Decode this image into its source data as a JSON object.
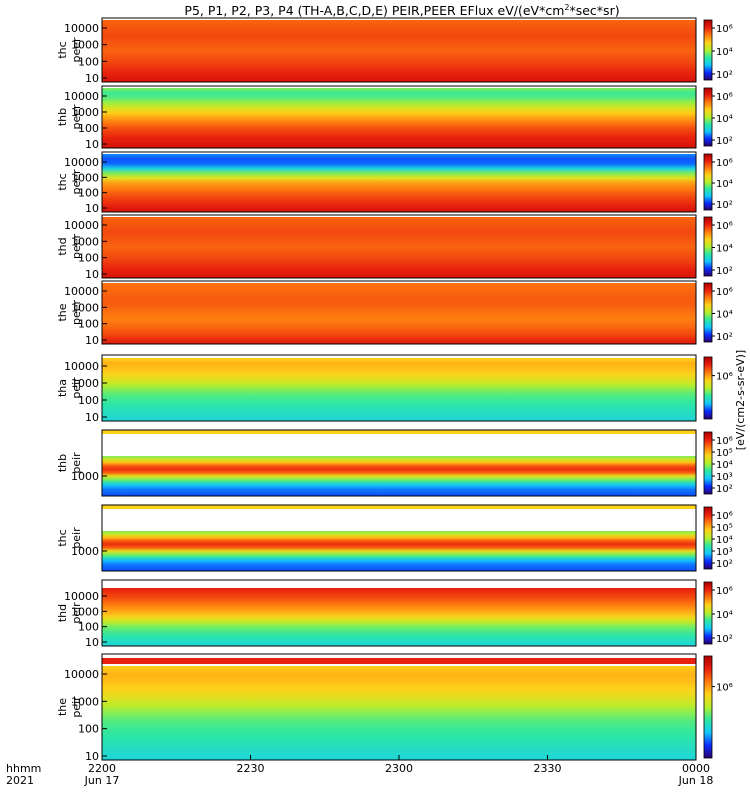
{
  "chart_data": {
    "type": "heatmap",
    "title": "P5, P1, P2, P3, P4 (TH-A,B,C,D,E) PEIR,PEER EFlux eV/(eV*cm²*sec*sr)",
    "title_text": "P5, P1, P2, P3, P4 (TH-A,B,C,D,E) PEIR,PEER EFlux eV/(eV*cm",
    "title_sup": "2",
    "title_tail": "*sec*sr)",
    "x_axis": {
      "corner_label_1": "hhmm",
      "corner_label_2": "2021",
      "ticks": [
        {
          "label": "2200",
          "sub": "Jun 17",
          "min": 0
        },
        {
          "label": "2230",
          "sub": "",
          "min": 30
        },
        {
          "label": "2300",
          "sub": "",
          "min": 60
        },
        {
          "label": "2330",
          "sub": "",
          "min": 90
        },
        {
          "label": "0000",
          "sub": "Jun 18",
          "min": 120
        }
      ],
      "range_minutes": [
        0,
        120
      ]
    },
    "y_scale": "log",
    "colorbar_unit_label": "[eV/(cm2-s-sr-eV)]",
    "colormap": [
      "#2a0070",
      "#0a2cff",
      "#14c8ff",
      "#2ee8a0",
      "#b6ef2a",
      "#ffd21a",
      "#ff7a10",
      "#e8200e",
      "#b00000"
    ],
    "panels": [
      {
        "name": "thc peer",
        "ylabel_1": "thc",
        "ylabel_2": "peer",
        "y_ticks": [
          "10",
          "100",
          "1000",
          "10000"
        ],
        "cbar_ticks": [
          "10²",
          "10⁴",
          "10⁶"
        ],
        "profile": "peer_full"
      },
      {
        "name": "thb peer",
        "ylabel_1": "thb",
        "ylabel_2": "peer",
        "y_ticks": [
          "10",
          "100",
          "1000",
          "10000"
        ],
        "cbar_ticks": [
          "10²",
          "10⁴",
          "10⁶"
        ],
        "profile": "peer_band"
      },
      {
        "name": "thc peer",
        "ylabel_1": "thc",
        "ylabel_2": "peer",
        "y_ticks": [
          "10",
          "100",
          "1000",
          "10000"
        ],
        "cbar_ticks": [
          "10²",
          "10⁴",
          "10⁶"
        ],
        "profile": "peer_blue"
      },
      {
        "name": "thd peer",
        "ylabel_1": "thd",
        "ylabel_2": "peer",
        "y_ticks": [
          "10",
          "100",
          "1000",
          "10000"
        ],
        "cbar_ticks": [
          "10²",
          "10⁴",
          "10⁶"
        ],
        "profile": "peer_full"
      },
      {
        "name": "the peer",
        "ylabel_1": "the",
        "ylabel_2": "peer",
        "y_ticks": [
          "10",
          "100",
          "1000",
          "10000"
        ],
        "cbar_ticks": [
          "10²",
          "10⁴",
          "10⁶"
        ],
        "profile": "peer_start"
      },
      {
        "name": "tha peir",
        "ylabel_1": "tha",
        "ylabel_2": "peir",
        "y_ticks": [
          "10",
          "100",
          "1000",
          "10000"
        ],
        "cbar_ticks": [
          "10⁶"
        ],
        "profile": "peir_green"
      },
      {
        "name": "thb peir",
        "ylabel_1": "thb",
        "ylabel_2": "peir",
        "y_ticks": [
          "1000"
        ],
        "cbar_ticks": [
          "10²",
          "10³",
          "10⁴",
          "10⁵",
          "10⁶"
        ],
        "profile": "peir_band"
      },
      {
        "name": "thc peir",
        "ylabel_1": "thc",
        "ylabel_2": "peir",
        "y_ticks": [
          "1000"
        ],
        "cbar_ticks": [
          "10²",
          "10³",
          "10⁴",
          "10⁵",
          "10⁶"
        ],
        "profile": "peir_band"
      },
      {
        "name": "thd peir",
        "ylabel_1": "thd",
        "ylabel_2": "peir",
        "y_ticks": [
          "10",
          "100",
          "1000",
          "10000"
        ],
        "cbar_ticks": [
          "10²",
          "10⁴",
          "10⁶"
        ],
        "profile": "peir_red"
      },
      {
        "name": "the peir",
        "ylabel_1": "the",
        "ylabel_2": "peir",
        "y_ticks": [
          "10",
          "100",
          "1000",
          "10000"
        ],
        "cbar_ticks": [
          "10⁶"
        ],
        "profile": "peir_green"
      }
    ]
  }
}
